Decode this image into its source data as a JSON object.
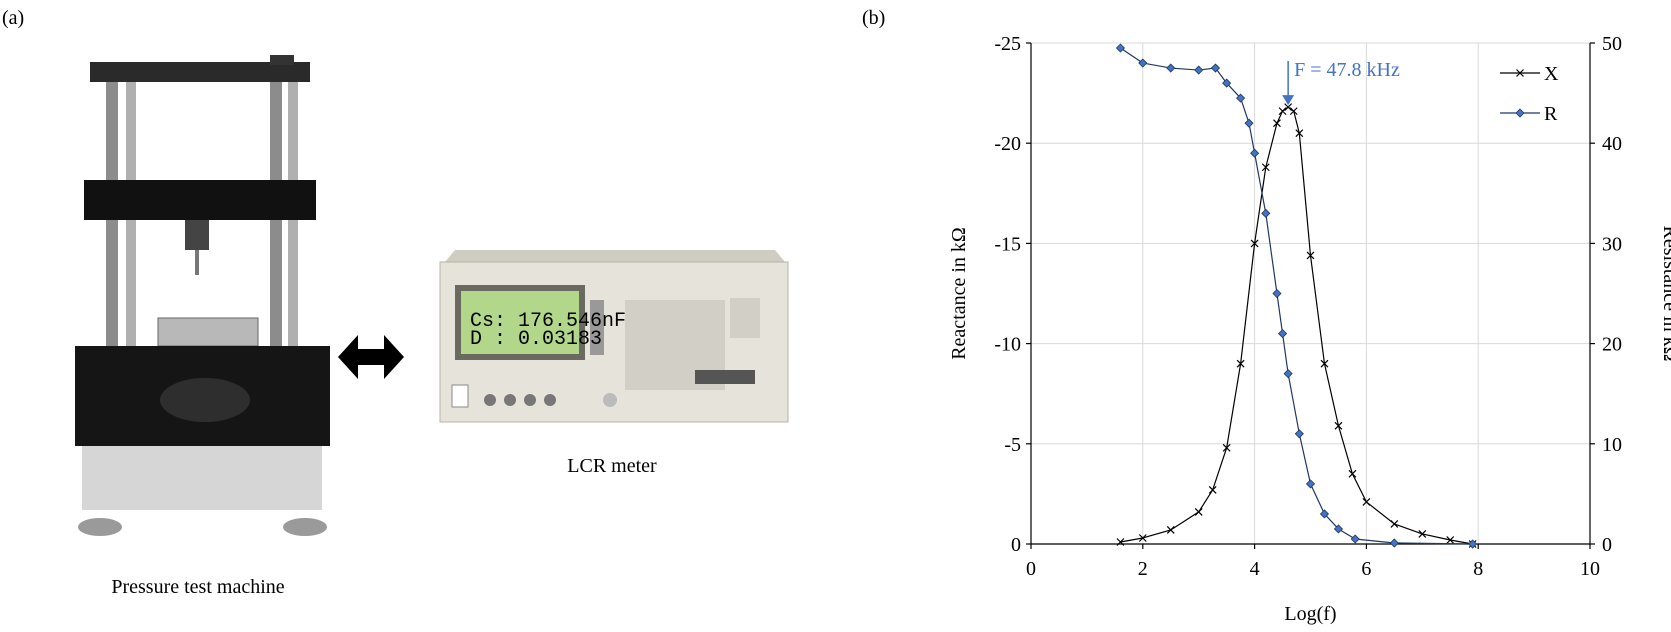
{
  "panels": {
    "a_label": "(a)",
    "b_label": "(b)"
  },
  "photos": {
    "machine_caption": "Pressure test machine",
    "meter_caption": "LCR meter",
    "meter_screen": [
      "Cs: 176.546nF",
      "D : 0.03183"
    ]
  },
  "chart_data": {
    "type": "line",
    "xlabel": "Log(f)",
    "ylabel": "Reactance in kΩ",
    "y2label": "Resistance in kΩ",
    "annotation": "F = 47.8 kHz",
    "xlim": [
      0,
      10
    ],
    "xticks": [
      0,
      2,
      4,
      6,
      8,
      10
    ],
    "ylim": [
      0,
      -25
    ],
    "yticks": [
      0,
      -5,
      -10,
      -15,
      -20,
      -25
    ],
    "y2lim": [
      0,
      50
    ],
    "y2ticks": [
      0,
      10,
      20,
      30,
      40,
      50
    ],
    "grid": true,
    "legend": "upper right",
    "series": [
      {
        "name": "X",
        "color": "#000000",
        "marker": "x",
        "x": [
          1.6,
          2,
          2.5,
          3,
          3.25,
          3.5,
          3.75,
          4,
          4.2,
          4.4,
          4.5,
          4.6,
          4.7,
          4.8,
          5,
          5.25,
          5.5,
          5.75,
          6,
          6.5,
          7,
          7.5,
          7.9
        ],
        "values": [
          -0.1,
          -0.3,
          -0.7,
          -1.6,
          -2.7,
          -4.8,
          -9,
          -15,
          -18.8,
          -21,
          -21.6,
          -21.8,
          -21.6,
          -20.5,
          -14.4,
          -9,
          -5.9,
          -3.5,
          -2.1,
          -1,
          -0.5,
          -0.2,
          0
        ]
      },
      {
        "name": "R",
        "color": "#1f3864",
        "marker_fill": "#4472c4",
        "marker": "diamond",
        "axis": "y2",
        "x": [
          1.6,
          2,
          2.5,
          3,
          3.3,
          3.5,
          3.75,
          3.9,
          4,
          4.2,
          4.4,
          4.5,
          4.6,
          4.8,
          5,
          5.25,
          5.5,
          5.8,
          6.5,
          7.9
        ],
        "values": [
          49.5,
          48,
          47.5,
          47.3,
          47.5,
          46,
          44.5,
          42,
          39,
          33,
          25,
          21,
          17,
          11,
          6,
          3,
          1.5,
          0.5,
          0.1,
          0
        ]
      }
    ]
  }
}
